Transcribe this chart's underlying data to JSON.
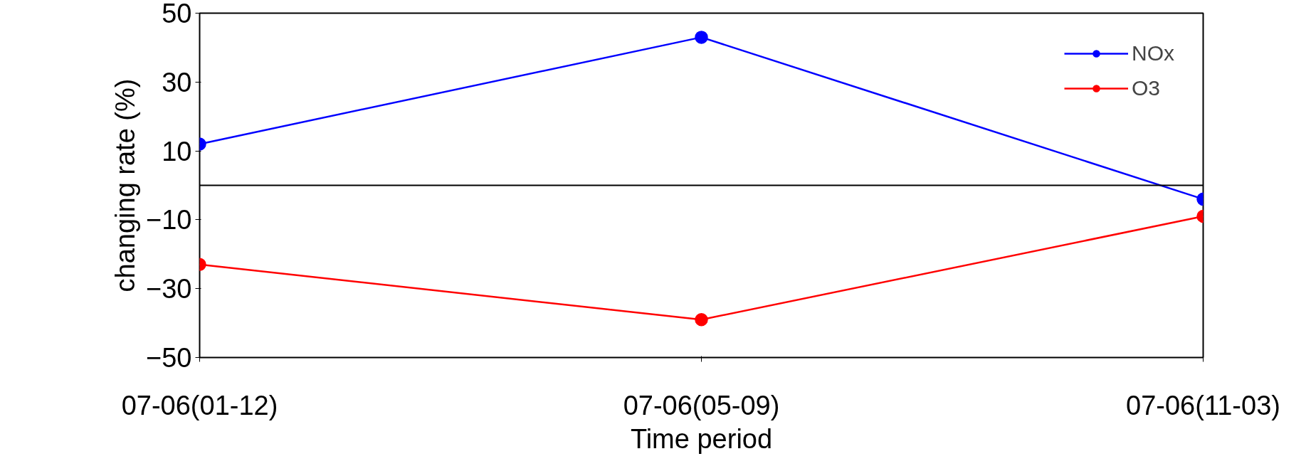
{
  "chart_data": {
    "type": "line",
    "xlabel": "Time period",
    "ylabel": "changing rate (%)",
    "categories": [
      "07-06(01-12)",
      "07-06(05-09)",
      "07-06(11-03)"
    ],
    "series": [
      {
        "name": "NOx",
        "color": "#0000ff",
        "values": [
          12,
          43,
          -4
        ]
      },
      {
        "name": "O3",
        "color": "#ff0000",
        "values": [
          -23,
          -39,
          -9
        ]
      }
    ],
    "ylim": [
      -50,
      50
    ],
    "yticks": [
      -50,
      -30,
      -10,
      10,
      30,
      50
    ],
    "ref_lines": [
      {
        "axis": "y",
        "value": 0,
        "color": "#000000"
      }
    ],
    "grid": false,
    "legend": "top right",
    "marker": "circle",
    "line_style": "solid"
  }
}
